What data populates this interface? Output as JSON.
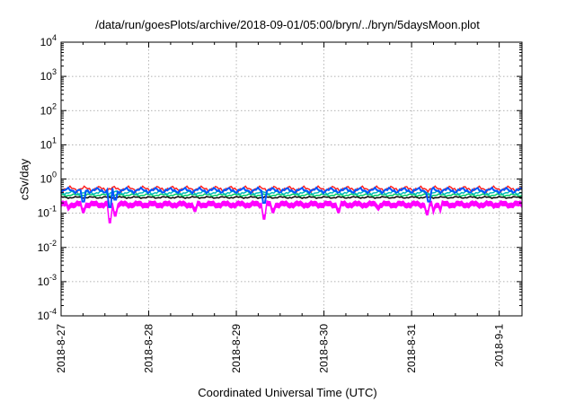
{
  "chart_data": {
    "type": "line",
    "title": "/data/run/goesPlots/archive/2018-09-01/05:00/bryn/../bryn/5daysMoon.plot",
    "xlabel": "Coordinated Universal Time (UTC)",
    "ylabel": "cSv/day",
    "yscale": "log",
    "ylim": [
      0.0001,
      10000
    ],
    "yticks": [
      {
        "value": 0.0001,
        "mantissa": "10",
        "exp": "-4"
      },
      {
        "value": 0.001,
        "mantissa": "10",
        "exp": "-3"
      },
      {
        "value": 0.01,
        "mantissa": "10",
        "exp": "-2"
      },
      {
        "value": 0.1,
        "mantissa": "10",
        "exp": "-1"
      },
      {
        "value": 1,
        "mantissa": "10",
        "exp": "0"
      },
      {
        "value": 10,
        "mantissa": "10",
        "exp": "1"
      },
      {
        "value": 100,
        "mantissa": "10",
        "exp": "2"
      },
      {
        "value": 1000,
        "mantissa": "10",
        "exp": "3"
      },
      {
        "value": 10000,
        "mantissa": "10",
        "exp": "4"
      }
    ],
    "xlim": [
      0,
      5.26
    ],
    "xticks": [
      {
        "value": 0,
        "label": "2018-8-27"
      },
      {
        "value": 1,
        "label": "2018-8-28"
      },
      {
        "value": 2,
        "label": "2018-8-29"
      },
      {
        "value": 3,
        "label": "2018-8-30"
      },
      {
        "value": 4,
        "label": "2018-8-31"
      },
      {
        "value": 5,
        "label": "2018-9-1"
      }
    ],
    "grid": true,
    "legend": "none",
    "series": [
      {
        "color": "#ff00ff",
        "fill": true,
        "base": 0.21,
        "amp": 0.03,
        "dips": [
          [
            0.08,
            0.16
          ],
          [
            0.25,
            0.14
          ],
          [
            0.55,
            0.07
          ],
          [
            0.62,
            0.11
          ],
          [
            1.52,
            0.15
          ],
          [
            2.32,
            0.09
          ],
          [
            2.42,
            0.14
          ],
          [
            3.16,
            0.14
          ],
          [
            3.62,
            0.16
          ],
          [
            4.18,
            0.12
          ],
          [
            4.25,
            0.13
          ],
          [
            4.33,
            0.14
          ]
        ]
      },
      {
        "color": "#000000",
        "fill": false,
        "base": 0.29,
        "amp": 0.02,
        "dips": []
      },
      {
        "color": "#00cc66",
        "fill": false,
        "base": 0.34,
        "amp": 0.03,
        "dips": []
      },
      {
        "color": "#00bbbb",
        "fill": false,
        "base": 0.4,
        "amp": 0.05,
        "dips": []
      },
      {
        "color": "#ff2222",
        "fill": false,
        "base": 0.52,
        "amp": 0.1,
        "dips": []
      },
      {
        "color": "#0055ff",
        "fill": false,
        "base": 0.47,
        "amp": 0.09,
        "dips": [
          [
            0.25,
            0.22
          ],
          [
            0.55,
            0.15
          ],
          [
            0.62,
            0.25
          ],
          [
            2.32,
            0.2
          ],
          [
            4.2,
            0.22
          ]
        ]
      }
    ]
  }
}
